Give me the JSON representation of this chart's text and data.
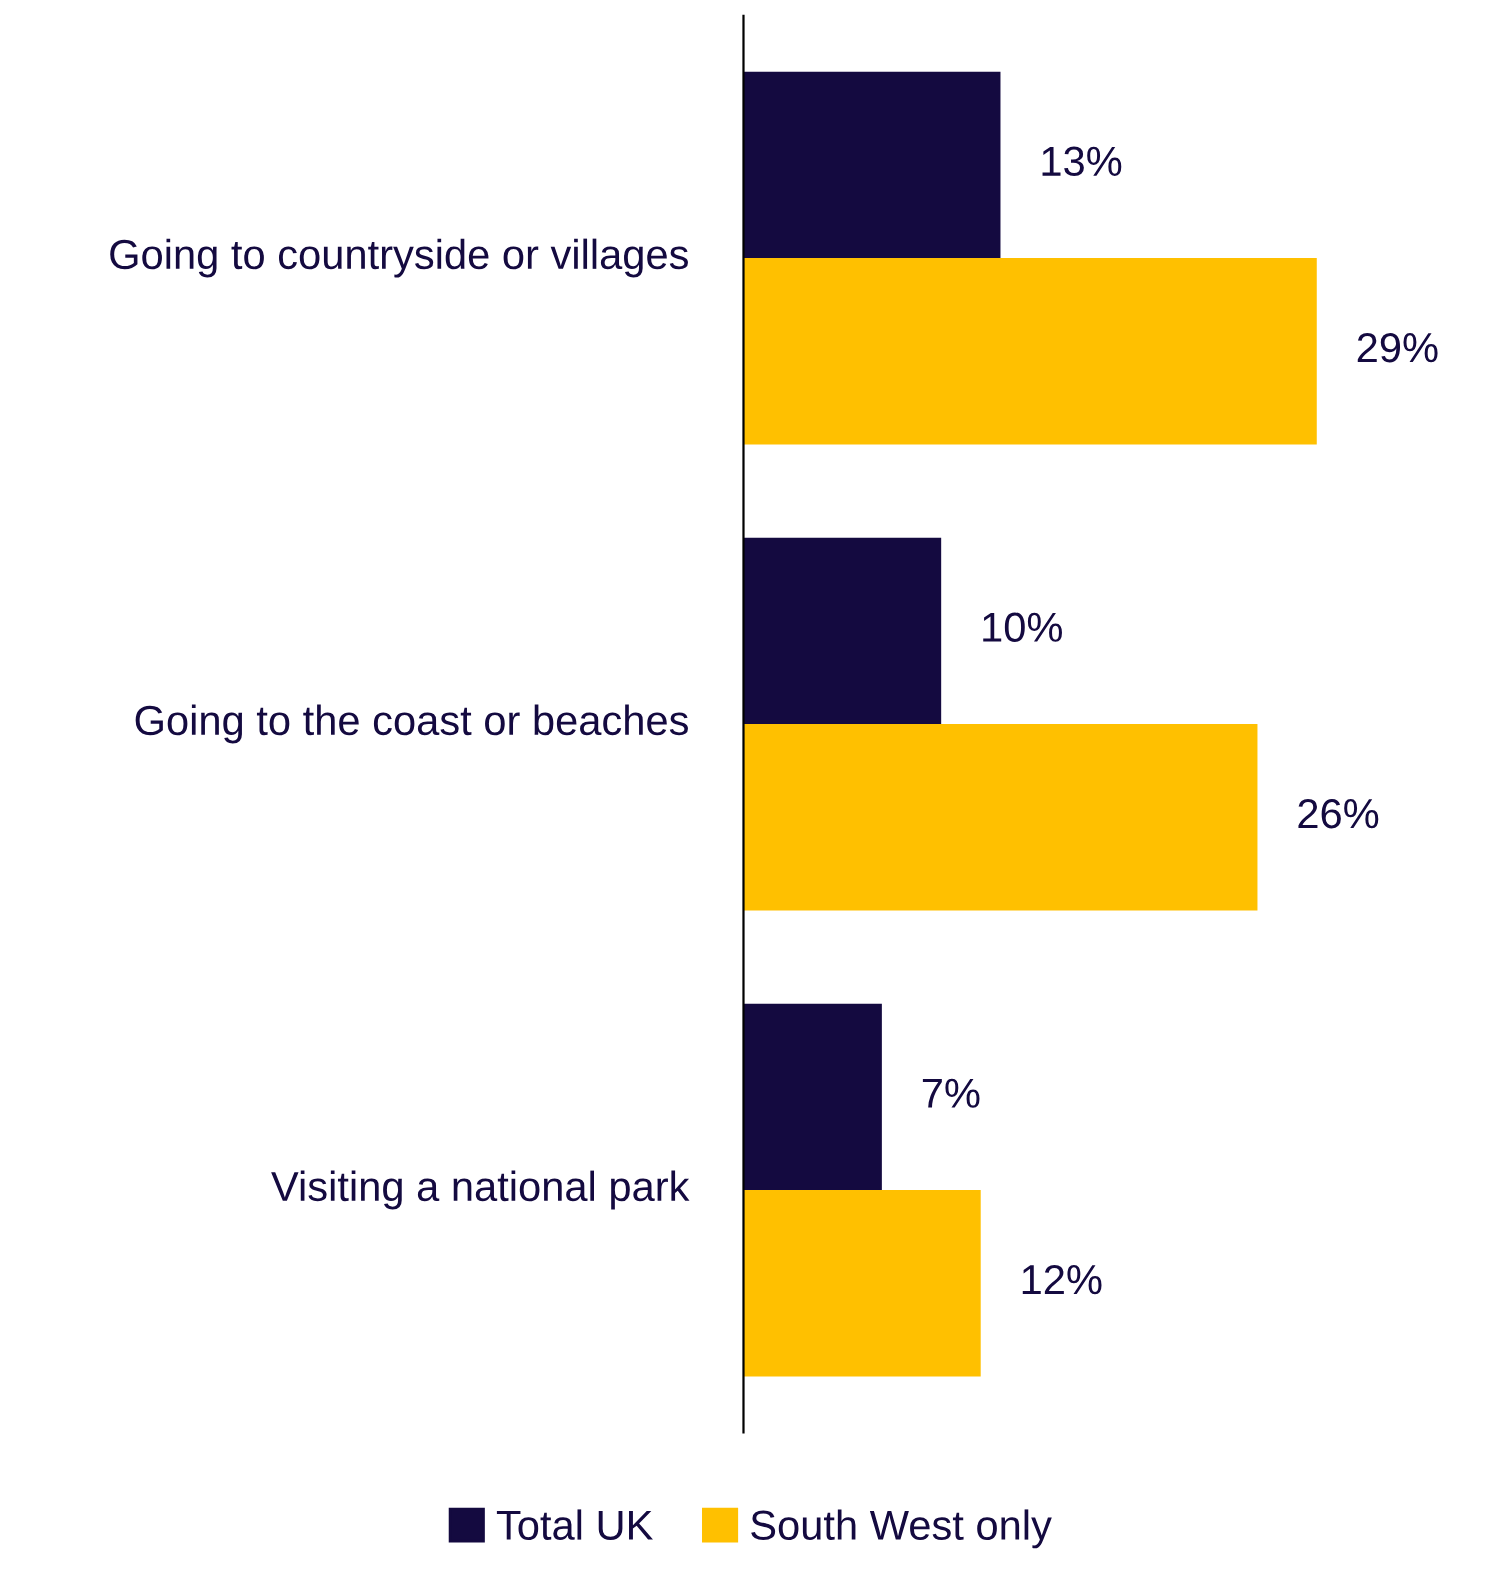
{
  "chart_data": {
    "type": "bar",
    "orientation": "horizontal",
    "categories": [
      "Going to countryside or villages",
      "Going to the coast or beaches",
      "Visiting a national park"
    ],
    "series": [
      {
        "name": "Total UK",
        "color": "#140a40",
        "values": [
          13,
          10,
          7
        ],
        "value_labels": [
          "13%",
          "10%",
          "7%"
        ]
      },
      {
        "name": "South West only",
        "color": "#ffc000",
        "values": [
          29,
          26,
          12
        ],
        "value_labels": [
          "29%",
          "26%",
          "12%"
        ]
      }
    ],
    "tick_labels": "y",
    "grid": false,
    "legend": "bottom"
  }
}
